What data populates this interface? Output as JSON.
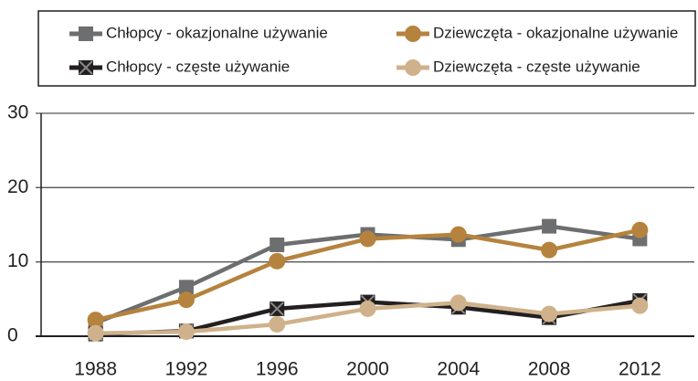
{
  "chart_data": {
    "type": "line",
    "categories": [
      "1988",
      "1992",
      "1996",
      "2000",
      "2004",
      "2008",
      "2012"
    ],
    "series": [
      {
        "name": "Chłopcy - okazjonalne używanie",
        "color": "#6d6e70",
        "marker": "square",
        "values": [
          1.8,
          6.6,
          12.3,
          13.7,
          13.0,
          14.8,
          13.1
        ]
      },
      {
        "name": "Dziewczęta - okazjonalne używanie",
        "color": "#b5833d",
        "marker": "circle",
        "values": [
          2.2,
          4.9,
          10.1,
          13.1,
          13.7,
          11.6,
          14.3
        ]
      },
      {
        "name": "Chłopcy - częste używanie",
        "color": "#231f20",
        "marker": "x-square",
        "values": [
          0.3,
          0.7,
          3.7,
          4.6,
          3.9,
          2.5,
          4.8
        ]
      },
      {
        "name": "Dziewczęta - częste używanie",
        "color": "#cfb28b",
        "marker": "circle",
        "values": [
          0.4,
          0.6,
          1.6,
          3.7,
          4.5,
          3.0,
          4.1
        ]
      }
    ],
    "ylim": [
      0,
      30
    ],
    "yticks": [
      0,
      10,
      20,
      30
    ],
    "grid": true,
    "legend": "top"
  }
}
